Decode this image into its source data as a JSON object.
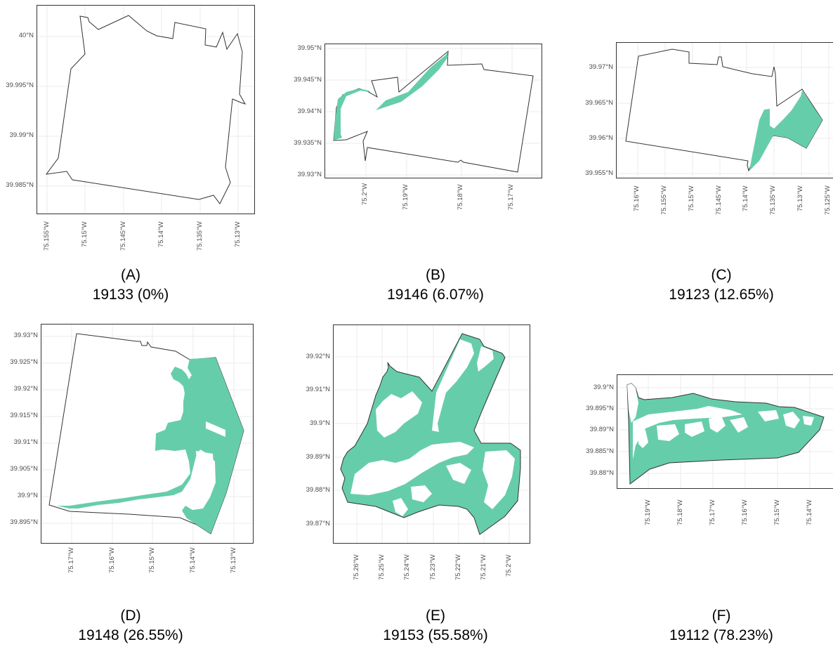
{
  "colors": {
    "flood": "#66cdaa",
    "outline": "#333333",
    "grid": "#ebebeb",
    "tick_text": "#4d4d4d"
  },
  "panels": [
    {
      "letter": "(A)",
      "caption": "19133 (0%)",
      "zip": "19133",
      "pct": 0,
      "x_ticks": [
        "75.155°W",
        "75.15°W",
        "75.145°W",
        "75.14°W",
        "75.135°W",
        "75.13°W"
      ],
      "y_ticks": [
        "40°N",
        "39.995°N",
        "39.99°N",
        "39.985°N"
      ]
    },
    {
      "letter": "(B)",
      "caption": "19146 (6.07%)",
      "zip": "19146",
      "pct": 6.07,
      "x_ticks": [
        "75.2°W",
        "75.19°W",
        "75.18°W",
        "75.17°W"
      ],
      "y_ticks": [
        "39.95°N",
        "39.945°N",
        "39.94°N",
        "39.935°N",
        "39.93°N"
      ]
    },
    {
      "letter": "(C)",
      "caption": "19123 (12.65%)",
      "zip": "19123",
      "pct": 12.65,
      "x_ticks": [
        "75.16°W",
        "75.155°W",
        "75.15°W",
        "75.145°W",
        "75.14°W",
        "75.135°W",
        "75.13°W",
        "75.125°W"
      ],
      "y_ticks": [
        "39.97°N",
        "39.965°N",
        "39.96°N",
        "39.955°N"
      ]
    },
    {
      "letter": "(D)",
      "caption": "19148 (26.55%)",
      "zip": "19148",
      "pct": 26.55,
      "x_ticks": [
        "75.17°W",
        "75.16°W",
        "75.15°W",
        "75.14°W",
        "75.13°W"
      ],
      "y_ticks": [
        "39.93°N",
        "39.925°N",
        "39.92°N",
        "39.915°N",
        "39.91°N",
        "39.905°N",
        "39.9°N",
        "39.895°N"
      ]
    },
    {
      "letter": "(E)",
      "caption": "19153 (55.58%)",
      "zip": "19153",
      "pct": 55.58,
      "x_ticks": [
        "75.26°W",
        "75.25°W",
        "75.24°W",
        "75.23°W",
        "75.22°W",
        "75.21°W",
        "75.2°W"
      ],
      "y_ticks": [
        "39.92°N",
        "39.91°N",
        "39.9°N",
        "39.89°N",
        "39.88°N",
        "39.87°N"
      ]
    },
    {
      "letter": "(F)",
      "caption": "19112 (78.23%)",
      "zip": "19112",
      "pct": 78.23,
      "x_ticks": [
        "75.19°W",
        "75.18°W",
        "75.17°W",
        "75.16°W",
        "75.15°W",
        "75.14°W"
      ],
      "y_ticks": [
        "39.9°N",
        "39.895°N",
        "39.89°N",
        "39.885°N",
        "39.88°N"
      ]
    }
  ]
}
